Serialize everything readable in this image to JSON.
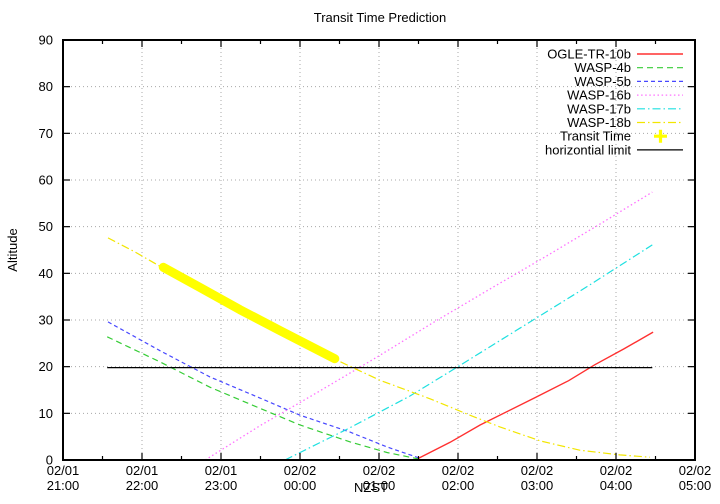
{
  "chart_data": {
    "type": "line",
    "title": "Transit Time Prediction",
    "xlabel": "NZST",
    "ylabel": "Altitude",
    "x_axis": {
      "range_hours": [
        0,
        8
      ],
      "major_ticks": [
        {
          "h": 0,
          "date": "02/01",
          "time": "21:00"
        },
        {
          "h": 1,
          "date": "02/01",
          "time": "22:00"
        },
        {
          "h": 2,
          "date": "02/01",
          "time": "23:00"
        },
        {
          "h": 3,
          "date": "02/02",
          "time": "00:00"
        },
        {
          "h": 4,
          "date": "02/02",
          "time": "01:00"
        },
        {
          "h": 5,
          "date": "02/02",
          "time": "02:00"
        },
        {
          "h": 6,
          "date": "02/02",
          "time": "03:00"
        },
        {
          "h": 7,
          "date": "02/02",
          "time": "04:00"
        },
        {
          "h": 8,
          "date": "02/02",
          "time": "05:00"
        }
      ],
      "minor_ticks_hours": [
        0.5,
        1.5,
        2.5,
        3.5,
        4.5,
        5.5,
        6.5,
        7.5
      ]
    },
    "y_axis": {
      "range": [
        0,
        90
      ],
      "ticks": [
        0,
        10,
        20,
        30,
        40,
        50,
        60,
        70,
        80,
        90
      ]
    },
    "grid": {
      "show": true,
      "color": "#a8a8a8",
      "vertical_hours": [
        1,
        2,
        3,
        4,
        5,
        6,
        7
      ],
      "horizontal_alts": [
        10,
        20,
        30,
        40,
        50,
        60,
        70,
        80
      ]
    },
    "legend": {
      "position": "top-right"
    },
    "series": [
      {
        "name": "OGLE-TR-10b",
        "color": "#ff3030",
        "style": "solid",
        "width": 1.4,
        "points": [
          [
            4.48,
            0.2
          ],
          [
            4.9,
            3.8
          ],
          [
            5.28,
            7.5
          ],
          [
            5.97,
            13.3
          ],
          [
            6.4,
            17.0
          ],
          [
            6.73,
            20.4
          ],
          [
            7.1,
            23.8
          ],
          [
            7.47,
            27.4
          ]
        ]
      },
      {
        "name": "WASP-4b",
        "color": "#35cc35",
        "style": "dashed",
        "width": 1.2,
        "points": [
          [
            0.56,
            26.4
          ],
          [
            1.23,
            21.0
          ],
          [
            1.86,
            15.6
          ],
          [
            2.49,
            11.1
          ],
          [
            3.0,
            7.5
          ],
          [
            3.63,
            3.9
          ],
          [
            4.1,
            1.6
          ],
          [
            4.51,
            0.2
          ]
        ]
      },
      {
        "name": "WASP-5b",
        "color": "#4747ff",
        "style": "dashed_short",
        "width": 1.2,
        "points": [
          [
            0.57,
            29.6
          ],
          [
            1.23,
            23.4
          ],
          [
            1.86,
            17.8
          ],
          [
            2.49,
            13.3
          ],
          [
            3.0,
            9.6
          ],
          [
            3.63,
            6.0
          ],
          [
            4.1,
            2.8
          ],
          [
            4.53,
            0.3
          ]
        ]
      },
      {
        "name": "WASP-16b",
        "color": "#ff70ff",
        "style": "dotted",
        "width": 1.3,
        "points": [
          [
            1.8,
            0.0
          ],
          [
            2.49,
            7.3
          ],
          [
            3.23,
            14.6
          ],
          [
            3.96,
            21.9
          ],
          [
            4.7,
            29.6
          ],
          [
            5.43,
            36.9
          ],
          [
            6.1,
            43.5
          ],
          [
            6.8,
            50.6
          ],
          [
            7.46,
            57.4
          ]
        ]
      },
      {
        "name": "WASP-17b",
        "color": "#1ee0e0",
        "style": "dashdot",
        "width": 1.2,
        "points": [
          [
            2.81,
            0.0
          ],
          [
            3.63,
            6.9
          ],
          [
            4.39,
            13.7
          ],
          [
            4.99,
            19.9
          ],
          [
            5.75,
            27.9
          ],
          [
            6.61,
            36.9
          ],
          [
            7.46,
            46.1
          ]
        ]
      },
      {
        "name": "WASP-18b",
        "color": "#f2e600",
        "style": "dashdot",
        "width": 1.2,
        "points": [
          [
            0.57,
            47.6
          ],
          [
            0.91,
            44.6
          ],
          [
            1.27,
            41.1
          ],
          [
            1.73,
            36.9
          ],
          [
            2.24,
            32.1
          ],
          [
            2.75,
            27.6
          ],
          [
            3.44,
            21.6
          ],
          [
            4.01,
            17.1
          ],
          [
            4.65,
            13.1
          ],
          [
            5.15,
            9.6
          ],
          [
            5.53,
            7.1
          ],
          [
            6.04,
            4.1
          ],
          [
            6.54,
            2.1
          ],
          [
            7.05,
            1.1
          ],
          [
            7.43,
            0.6
          ]
        ]
      },
      {
        "name": "Transit Time",
        "color": "#ffff00",
        "style": "band",
        "width": 9,
        "legend_marker": "plus",
        "points": [
          [
            1.27,
            41.3
          ],
          [
            1.73,
            37.0
          ],
          [
            2.24,
            32.2
          ],
          [
            2.75,
            27.7
          ],
          [
            3.44,
            21.7
          ]
        ]
      },
      {
        "name": "horizontial limit",
        "color": "#000000",
        "style": "solid",
        "width": 1.3,
        "points": [
          [
            0.56,
            19.8
          ],
          [
            7.46,
            19.8
          ]
        ]
      }
    ]
  }
}
